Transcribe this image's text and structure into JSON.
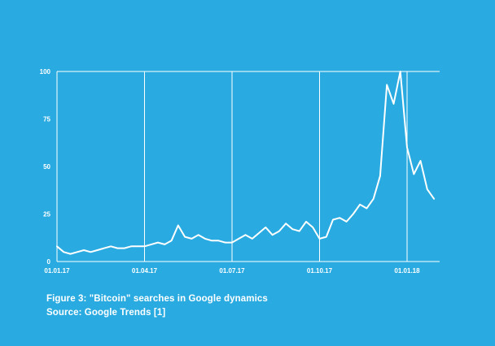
{
  "figure": {
    "background_color": "#29abe2",
    "line_color": "#ffffff",
    "grid_color": "#ffffff",
    "text_color": "#ffffff"
  },
  "caption": {
    "line1": "Figure 3: \"Bitcoin\" searches in Google dynamics",
    "line2": "Source: Google Trends [1]"
  },
  "chart_data": {
    "type": "line",
    "title": "",
    "xlabel": "",
    "ylabel": "",
    "ylim": [
      0,
      100
    ],
    "y_ticks": [
      0,
      25,
      50,
      75,
      100
    ],
    "x_tick_labels": [
      "01.01.17",
      "01.04.17",
      "01.07.17",
      "01.10.17",
      "01.01.18"
    ],
    "x_tick_positions_weeks": [
      0,
      13,
      26,
      39,
      52
    ],
    "x_unit": "weeks since 01.01.2017 (weekly data points)",
    "grid": "vertical gridlines at date ticks plus top (100) and bottom (0) frame lines",
    "legend": "none",
    "series": [
      {
        "name": "\"Bitcoin\" Google search interest (relative, 0-100)",
        "values": [
          8,
          5,
          4,
          5,
          6,
          5,
          6,
          7,
          8,
          7,
          7,
          8,
          8,
          8,
          9,
          10,
          9,
          11,
          19,
          13,
          12,
          14,
          12,
          11,
          11,
          10,
          10,
          12,
          14,
          12,
          15,
          18,
          14,
          16,
          20,
          17,
          16,
          21,
          18,
          12,
          13,
          22,
          23,
          21,
          25,
          30,
          28,
          33,
          45,
          93,
          83,
          100,
          60,
          46,
          53,
          38,
          33
        ]
      }
    ]
  }
}
